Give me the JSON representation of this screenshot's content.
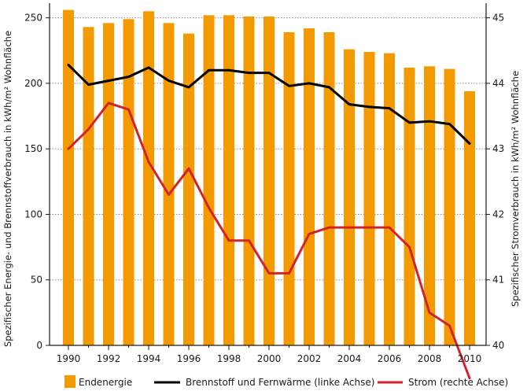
{
  "chart_data": {
    "type": "bar+line",
    "categories": [
      "1990",
      "1991",
      "1992",
      "1993",
      "1994",
      "1995",
      "1996",
      "1997",
      "1998",
      "1999",
      "2000",
      "2001",
      "2002",
      "2003",
      "2004",
      "2005",
      "2006",
      "2007",
      "2008",
      "2009",
      "2010"
    ],
    "x_tick_labels": [
      "1990",
      "1992",
      "1994",
      "1996",
      "1998",
      "2000",
      "2002",
      "2004",
      "2006",
      "2008",
      "2010"
    ],
    "series": [
      {
        "name": "Endenergie",
        "kind": "bar",
        "axis": "left",
        "color": "#F39A00",
        "values": [
          256,
          243,
          246,
          249,
          255,
          246,
          238,
          252,
          252,
          251,
          251,
          239,
          242,
          239,
          226,
          224,
          223,
          212,
          213,
          211,
          194
        ]
      },
      {
        "name": "Brennstoff und Fernwärme (linke Achse)",
        "kind": "line",
        "axis": "left",
        "color": "#000000",
        "values": [
          214,
          199,
          202,
          205,
          212,
          202,
          197,
          210,
          210,
          208,
          208,
          198,
          200,
          197,
          184,
          182,
          181,
          170,
          171,
          169,
          154
        ]
      },
      {
        "name": "Strom (rechte Achse)",
        "kind": "line",
        "axis": "right",
        "color": "#D2232A",
        "values": [
          43.0,
          43.3,
          43.7,
          43.6,
          42.8,
          42.3,
          42.7,
          42.1,
          41.6,
          41.6,
          41.1,
          41.1,
          41.7,
          41.8,
          41.8,
          41.8,
          41.8,
          41.5,
          40.5,
          40.3,
          39.5
        ]
      }
    ],
    "y_left": {
      "label": "Spezifischer Energie- und Brennstoffverbrauch in kWh/m² Wohnfläche",
      "ticks": [
        "0",
        "50",
        "100",
        "150",
        "200",
        "250"
      ],
      "ylim": [
        0,
        260
      ]
    },
    "y_right": {
      "label": "Spezifischer Stromverbrauch in kWh/m² Wohnfläche",
      "ticks": [
        "40",
        "41",
        "42",
        "43",
        "44",
        "45"
      ],
      "ylim": [
        40,
        45.2
      ]
    },
    "legend": {
      "placement": "bottom",
      "items": [
        "Endenergie",
        "Brennstoff und Fernwärme (linke Achse)",
        "Strom (rechte Achse)"
      ]
    }
  }
}
